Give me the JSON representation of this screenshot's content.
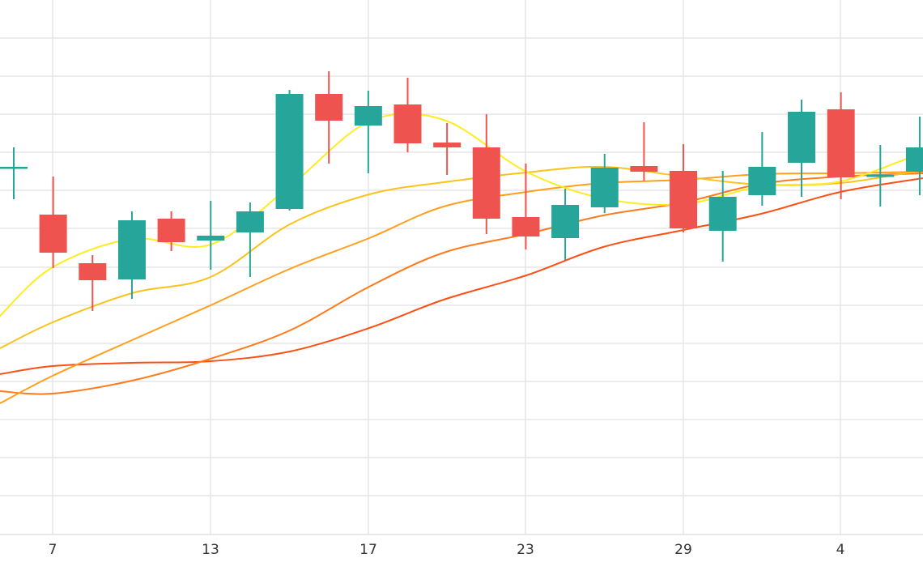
{
  "chart_data": {
    "type": "candlestick",
    "title": "",
    "xlabel": "",
    "ylabel": "",
    "x_tick_labels": [
      "7",
      "13",
      "17",
      "23",
      "29",
      "4"
    ],
    "grid": true,
    "y_range": [
      0,
      660
    ],
    "colors": {
      "up": "#26a69a",
      "down": "#ef5350",
      "grid": "#e6e6e6",
      "text": "#333333"
    },
    "candles": [
      {
        "open": 454,
        "close": 454,
        "high": 478,
        "low": 414
      },
      {
        "open": 395,
        "close": 348,
        "high": 442,
        "low": 329
      },
      {
        "open": 335,
        "close": 314,
        "high": 345,
        "low": 276
      },
      {
        "open": 315,
        "close": 388,
        "high": 399,
        "low": 291
      },
      {
        "open": 390,
        "close": 361,
        "high": 399,
        "low": 350
      },
      {
        "open": 363,
        "close": 369,
        "high": 412,
        "low": 327
      },
      {
        "open": 373,
        "close": 399,
        "high": 410,
        "low": 318
      },
      {
        "open": 402,
        "close": 544,
        "high": 549,
        "low": 400
      },
      {
        "open": 544,
        "close": 511,
        "high": 572,
        "low": 458
      },
      {
        "open": 505,
        "close": 529,
        "high": 548,
        "low": 446
      },
      {
        "open": 531,
        "close": 483,
        "high": 564,
        "low": 472
      },
      {
        "open": 484,
        "close": 478,
        "high": 508,
        "low": 444
      },
      {
        "open": 478,
        "close": 390,
        "high": 519,
        "low": 371
      },
      {
        "open": 392,
        "close": 368,
        "high": 458,
        "low": 352
      },
      {
        "open": 366,
        "close": 407,
        "high": 427,
        "low": 339
      },
      {
        "open": 404,
        "close": 453,
        "high": 470,
        "low": 397
      },
      {
        "open": 455,
        "close": 448,
        "high": 509,
        "low": 437
      },
      {
        "open": 449,
        "close": 378,
        "high": 482,
        "low": 373
      },
      {
        "open": 375,
        "close": 417,
        "high": 449,
        "low": 337
      },
      {
        "open": 419,
        "close": 454,
        "high": 497,
        "low": 406
      },
      {
        "open": 459,
        "close": 522,
        "high": 537,
        "low": 417
      },
      {
        "open": 525,
        "close": 441,
        "high": 546,
        "low": 414
      },
      {
        "open": 444,
        "close": 444,
        "high": 481,
        "low": 405
      },
      {
        "open": 448,
        "close": 478,
        "high": 516,
        "low": 419
      }
    ],
    "moving_averages": [
      {
        "color": "#ffec1f",
        "values": [
          [
            -6,
            262
          ],
          [
            0,
            270
          ],
          [
            65,
            330
          ],
          [
            163,
            365
          ],
          [
            260,
            358
          ],
          [
            358,
            430
          ],
          [
            456,
            510
          ],
          [
            548,
            512
          ],
          [
            650,
            448
          ],
          [
            745,
            415
          ],
          [
            844,
            408
          ],
          [
            940,
            430
          ],
          [
            1038,
            436
          ],
          [
            1140,
            472
          ]
        ]
      },
      {
        "color": "#f9c31a",
        "values": [
          [
            0,
            230
          ],
          [
            65,
            262
          ],
          [
            163,
            298
          ],
          [
            260,
            318
          ],
          [
            358,
            383
          ],
          [
            456,
            420
          ],
          [
            548,
            435
          ],
          [
            650,
            447
          ],
          [
            745,
            454
          ],
          [
            844,
            442
          ],
          [
            940,
            432
          ],
          [
            1038,
            434
          ],
          [
            1140,
            450
          ]
        ]
      },
      {
        "color": "#ff9f1c",
        "values": [
          [
            0,
            162
          ],
          [
            65,
            196
          ],
          [
            163,
            240
          ],
          [
            260,
            283
          ],
          [
            358,
            328
          ],
          [
            456,
            366
          ],
          [
            548,
            405
          ],
          [
            650,
            423
          ],
          [
            745,
            434
          ],
          [
            844,
            438
          ],
          [
            940,
            445
          ],
          [
            1038,
            446
          ],
          [
            1140,
            448
          ]
        ]
      },
      {
        "color": "#ff7a1a",
        "values": [
          [
            0,
            177
          ],
          [
            65,
            174
          ],
          [
            163,
            190
          ],
          [
            260,
            217
          ],
          [
            358,
            252
          ],
          [
            456,
            306
          ],
          [
            548,
            348
          ],
          [
            650,
            371
          ],
          [
            745,
            394
          ],
          [
            844,
            410
          ],
          [
            940,
            433
          ],
          [
            1038,
            442
          ],
          [
            1140,
            446
          ]
        ]
      },
      {
        "color": "#fb4f14",
        "values": [
          [
            0,
            198
          ],
          [
            65,
            208
          ],
          [
            163,
            212
          ],
          [
            260,
            214
          ],
          [
            358,
            226
          ],
          [
            456,
            255
          ],
          [
            548,
            290
          ],
          [
            650,
            320
          ],
          [
            745,
            355
          ],
          [
            844,
            376
          ],
          [
            940,
            396
          ],
          [
            1038,
            423
          ],
          [
            1140,
            440
          ]
        ]
      }
    ]
  }
}
